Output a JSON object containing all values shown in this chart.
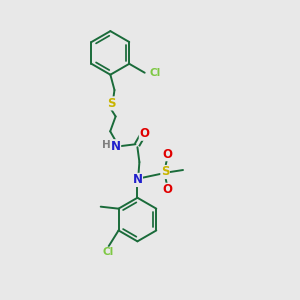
{
  "background_color": "#e8e8e8",
  "bond_color": "#1a6b3a",
  "atom_colors": {
    "Cl": "#7dc842",
    "S": "#c8b400",
    "N": "#2020cc",
    "H": "#808080",
    "O": "#e00000"
  },
  "figsize": [
    3.0,
    3.0
  ],
  "dpi": 100,
  "ring_r": 22,
  "lw": 1.4
}
